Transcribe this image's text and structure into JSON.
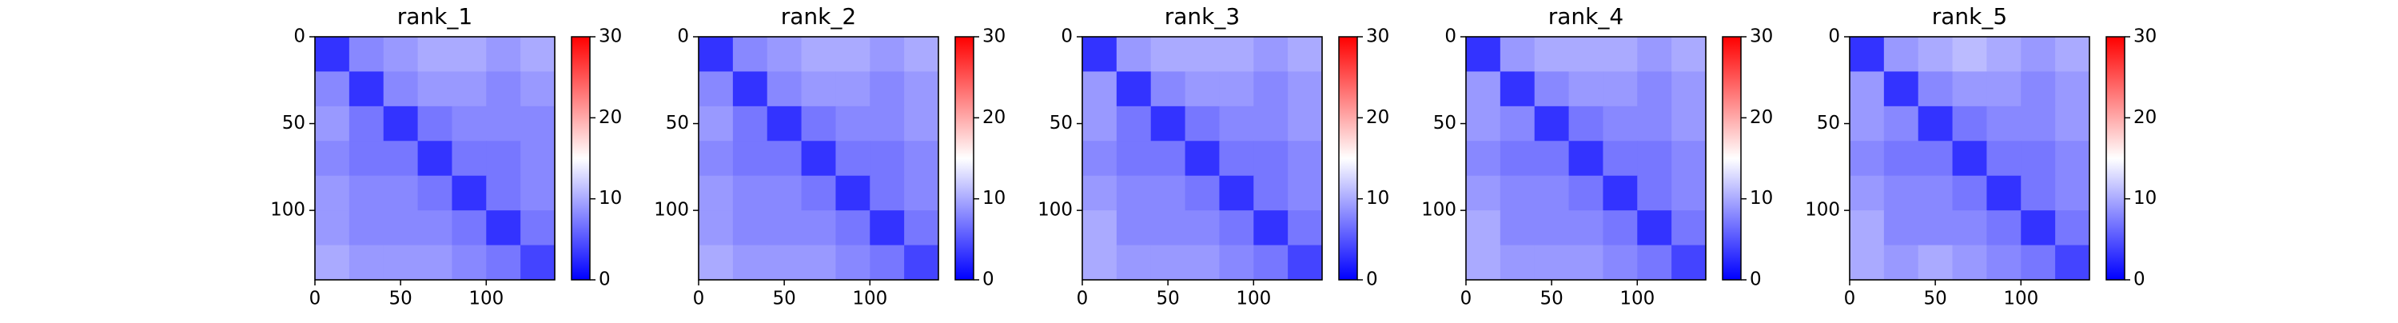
{
  "chart_data": [
    {
      "type": "heatmap",
      "title": "rank_1",
      "xlim": [
        0,
        140
      ],
      "ylim": [
        0,
        140
      ],
      "y_inverted": true,
      "xticks": [
        0,
        50,
        100
      ],
      "yticks": [
        0,
        50,
        100
      ],
      "clim": [
        0,
        30
      ],
      "cticks": [
        0,
        10,
        20,
        30
      ],
      "cmap": "bwr",
      "z": [
        [
          3,
          8,
          9,
          10,
          10,
          9,
          10
        ],
        [
          8,
          3,
          8,
          9,
          9,
          8,
          9
        ],
        [
          9,
          7,
          3,
          7,
          8,
          8,
          8
        ],
        [
          8,
          7,
          7,
          3,
          7,
          7,
          8
        ],
        [
          9,
          8,
          8,
          7,
          3,
          7,
          8
        ],
        [
          9,
          8,
          8,
          8,
          7,
          3,
          7
        ],
        [
          10,
          9,
          9,
          9,
          8,
          7,
          4
        ]
      ]
    },
    {
      "type": "heatmap",
      "title": "rank_2",
      "xlim": [
        0,
        140
      ],
      "ylim": [
        0,
        140
      ],
      "y_inverted": true,
      "xticks": [
        0,
        50,
        100
      ],
      "yticks": [
        0,
        50,
        100
      ],
      "clim": [
        0,
        30
      ],
      "cticks": [
        0,
        10,
        20,
        30
      ],
      "cmap": "bwr",
      "z": [
        [
          3,
          8,
          9,
          10,
          10,
          9,
          10
        ],
        [
          8,
          3,
          8,
          9,
          9,
          8,
          9
        ],
        [
          9,
          7,
          3,
          7,
          8,
          8,
          9
        ],
        [
          8,
          7,
          7,
          3,
          7,
          7,
          8
        ],
        [
          9,
          8,
          8,
          7,
          3,
          7,
          8
        ],
        [
          9,
          8,
          8,
          8,
          7,
          3,
          7
        ],
        [
          10,
          9,
          9,
          9,
          8,
          7,
          4
        ]
      ]
    },
    {
      "type": "heatmap",
      "title": "rank_3",
      "xlim": [
        0,
        140
      ],
      "ylim": [
        0,
        140
      ],
      "y_inverted": true,
      "xticks": [
        0,
        50,
        100
      ],
      "yticks": [
        0,
        50,
        100
      ],
      "clim": [
        0,
        30
      ],
      "cticks": [
        0,
        10,
        20,
        30
      ],
      "cmap": "bwr",
      "z": [
        [
          3,
          9,
          10,
          10,
          10,
          9,
          10
        ],
        [
          9,
          3,
          8,
          9,
          9,
          8,
          9
        ],
        [
          9,
          7,
          3,
          7,
          8,
          8,
          9
        ],
        [
          8,
          7,
          7,
          3,
          7,
          7,
          8
        ],
        [
          9,
          8,
          8,
          7,
          3,
          7,
          8
        ],
        [
          10,
          8,
          8,
          8,
          7,
          3,
          7
        ],
        [
          10,
          9,
          9,
          9,
          8,
          7,
          4
        ]
      ]
    },
    {
      "type": "heatmap",
      "title": "rank_4",
      "xlim": [
        0,
        140
      ],
      "ylim": [
        0,
        140
      ],
      "y_inverted": true,
      "xticks": [
        0,
        50,
        100
      ],
      "yticks": [
        0,
        50,
        100
      ],
      "clim": [
        0,
        30
      ],
      "cticks": [
        0,
        10,
        20,
        30
      ],
      "cmap": "bwr",
      "z": [
        [
          3,
          9,
          10,
          10,
          10,
          9,
          10
        ],
        [
          9,
          3,
          8,
          9,
          9,
          8,
          9
        ],
        [
          9,
          8,
          3,
          7,
          8,
          8,
          9
        ],
        [
          8,
          7,
          7,
          3,
          7,
          7,
          8
        ],
        [
          9,
          8,
          8,
          7,
          3,
          7,
          8
        ],
        [
          10,
          8,
          8,
          8,
          7,
          3,
          7
        ],
        [
          10,
          9,
          9,
          9,
          8,
          7,
          4
        ]
      ]
    },
    {
      "type": "heatmap",
      "title": "rank_5",
      "xlim": [
        0,
        140
      ],
      "ylim": [
        0,
        140
      ],
      "y_inverted": true,
      "xticks": [
        0,
        50,
        100
      ],
      "yticks": [
        0,
        50,
        100
      ],
      "clim": [
        0,
        30
      ],
      "cticks": [
        0,
        10,
        20,
        30
      ],
      "cmap": "bwr",
      "z": [
        [
          3,
          9,
          10,
          11,
          10,
          9,
          10
        ],
        [
          9,
          3,
          8,
          9,
          9,
          8,
          9
        ],
        [
          9,
          8,
          3,
          7,
          8,
          8,
          9
        ],
        [
          8,
          7,
          7,
          3,
          7,
          7,
          8
        ],
        [
          9,
          8,
          8,
          7,
          3,
          7,
          8
        ],
        [
          10,
          8,
          8,
          8,
          7,
          3,
          7
        ],
        [
          10,
          9,
          10,
          9,
          8,
          7,
          4
        ]
      ]
    }
  ]
}
